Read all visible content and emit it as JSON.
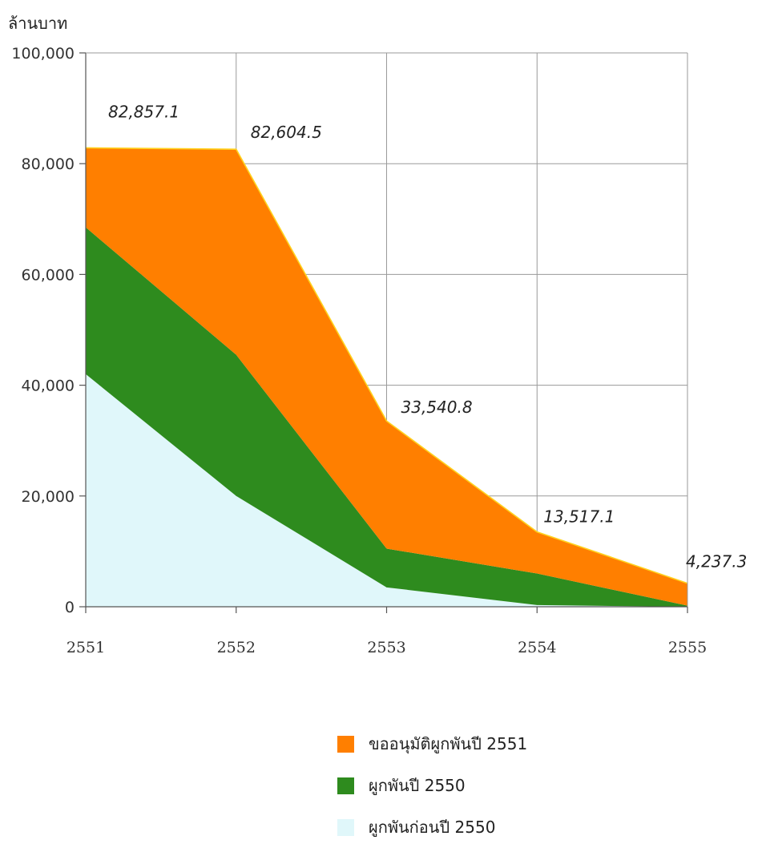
{
  "chart_data": {
    "type": "area",
    "stacked": true,
    "ylabel": "ล้านบาท",
    "xlabel": "",
    "x": [
      "2551",
      "2552",
      "2553",
      "2554",
      "2555"
    ],
    "ylim": [
      0,
      100000
    ],
    "yticks": [
      0,
      20000,
      40000,
      60000,
      80000,
      100000
    ],
    "ytick_labels": [
      "0",
      "20,000",
      "40,000",
      "60,000",
      "80,000",
      "100,000"
    ],
    "grid": true,
    "legend_position": "bottom",
    "series": [
      {
        "name": "ผูกพันก่อนปี 2550",
        "color": "#e0f7fa",
        "values": [
          42000,
          20000,
          3500,
          300,
          0
        ]
      },
      {
        "name": "ผูกพันปี 2550",
        "color": "#2e8b1e",
        "values": [
          26500,
          25500,
          7000,
          5700,
          200
        ]
      },
      {
        "name": "ขออนุมัติผูกพันปี 2551",
        "color": "#ff7f00",
        "values": [
          14357.1,
          37104.5,
          23040.8,
          7517.1,
          4037.3
        ]
      }
    ],
    "totals": [
      82857.1,
      82604.5,
      33540.8,
      13517.1,
      4237.3
    ],
    "total_labels": [
      "82,857.1",
      "82,604.5",
      "33,540.8",
      "13,517.1",
      "4,237.3"
    ],
    "legend_order": [
      "ขออนุมัติผูกพันปี 2551",
      "ผูกพันปี 2550",
      "ผูกพันก่อนปี 2550"
    ]
  }
}
